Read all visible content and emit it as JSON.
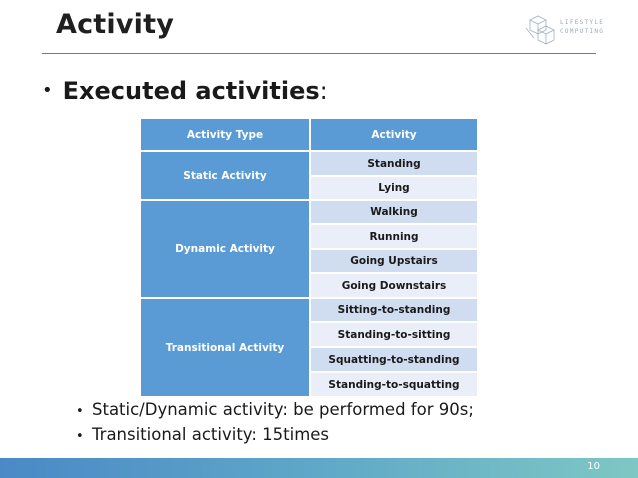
{
  "slide": {
    "title": "Activity",
    "page_number": "10"
  },
  "logo": {
    "line1": "LIFESTYLE",
    "line2": "COMPUTING"
  },
  "heading": {
    "bullet": "•",
    "text": "Executed activities",
    "suffix": ":"
  },
  "table": {
    "columns": [
      "Activity Type",
      "Activity"
    ],
    "groups": [
      {
        "type": "Static Activity",
        "activities": [
          "Standing",
          "Lying"
        ]
      },
      {
        "type": "Dynamic Activity",
        "activities": [
          "Walking",
          "Running",
          "Going Upstairs",
          "Going Downstairs"
        ]
      },
      {
        "type": "Transitional Activity",
        "activities": [
          "Sitting-to-standing",
          "Standing-to-sitting",
          "Squatting-to-standing",
          "Standing-to-squatting"
        ]
      }
    ]
  },
  "notes": [
    "Static/Dynamic activity: be performed for 90s;",
    "Transitional activity: 15times"
  ],
  "colors": {
    "header_blue": "#5b9bd5",
    "band_dark": "#d0dcf0",
    "band_light": "#e9eef8"
  }
}
